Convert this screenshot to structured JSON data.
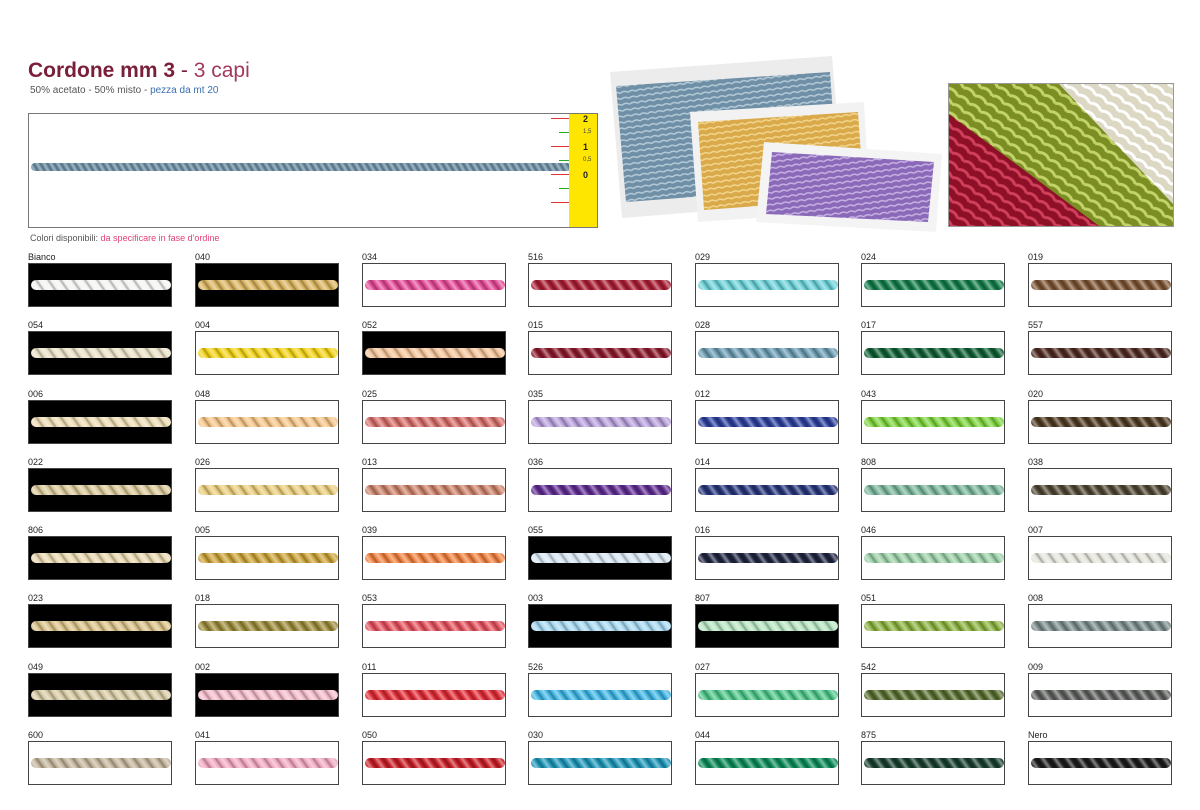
{
  "header": {
    "title_main": "Cordone mm 3",
    "title_sep": " - ",
    "title_sub": "3 capi",
    "spec": "50% acetato - 50% misto - ",
    "length": "pezza da mt 20",
    "available_label": "Colori disponibili: ",
    "available_note": "da specificare in fase d'ordine"
  },
  "ruler": {
    "cord_color": "#6a8ba0",
    "labels": [
      "2",
      "1,5",
      "1",
      "0,5",
      "0"
    ]
  },
  "swatches": [
    [
      {
        "code": "Bianco",
        "color": "#f4f4f2",
        "bg": "#000000"
      },
      {
        "code": "054",
        "color": "#e9e0c6",
        "bg": "#000000"
      },
      {
        "code": "006",
        "color": "#ecdcb4",
        "bg": "#000000"
      },
      {
        "code": "022",
        "color": "#d9c89a",
        "bg": "#000000"
      },
      {
        "code": "806",
        "color": "#e8d8b0",
        "bg": "#000000"
      },
      {
        "code": "023",
        "color": "#d9c28a",
        "bg": "#000000"
      },
      {
        "code": "049",
        "color": "#d6c9a4",
        "bg": "#000000"
      },
      {
        "code": "600",
        "color": "#c2b39a",
        "bg": "#ffffff"
      }
    ],
    [
      {
        "code": "040",
        "color": "#d8b360",
        "bg": "#000000"
      },
      {
        "code": "004",
        "color": "#f2d21a",
        "bg": "#ffffff"
      },
      {
        "code": "048",
        "color": "#f4c58a",
        "bg": "#ffffff"
      },
      {
        "code": "026",
        "color": "#e8cc7c",
        "bg": "#ffffff"
      },
      {
        "code": "005",
        "color": "#c9a23a",
        "bg": "#ffffff"
      },
      {
        "code": "018",
        "color": "#9a8a3a",
        "bg": "#ffffff"
      },
      {
        "code": "002",
        "color": "#f3bccb",
        "bg": "#000000"
      },
      {
        "code": "041",
        "color": "#f0a8c0",
        "bg": "#ffffff"
      }
    ],
    [
      {
        "code": "034",
        "color": "#e24a95",
        "bg": "#ffffff"
      },
      {
        "code": "052",
        "color": "#f2c39a",
        "bg": "#000000"
      },
      {
        "code": "025",
        "color": "#d46e6a",
        "bg": "#ffffff"
      },
      {
        "code": "013",
        "color": "#c9826a",
        "bg": "#ffffff"
      },
      {
        "code": "039",
        "color": "#ee8140",
        "bg": "#ffffff"
      },
      {
        "code": "053",
        "color": "#e2525e",
        "bg": "#ffffff"
      },
      {
        "code": "011",
        "color": "#de2b35",
        "bg": "#ffffff"
      },
      {
        "code": "050",
        "color": "#c61e26",
        "bg": "#ffffff"
      }
    ],
    [
      {
        "code": "516",
        "color": "#a81e34",
        "bg": "#ffffff"
      },
      {
        "code": "015",
        "color": "#8a1a2c",
        "bg": "#ffffff"
      },
      {
        "code": "035",
        "color": "#b7a0da",
        "bg": "#ffffff"
      },
      {
        "code": "036",
        "color": "#5e2b8e",
        "bg": "#ffffff"
      },
      {
        "code": "055",
        "color": "#d8e6f2",
        "bg": "#000000"
      },
      {
        "code": "003",
        "color": "#a8d8f0",
        "bg": "#000000"
      },
      {
        "code": "526",
        "color": "#3fb4e2",
        "bg": "#ffffff"
      },
      {
        "code": "030",
        "color": "#1f95b6",
        "bg": "#ffffff"
      }
    ],
    [
      {
        "code": "029",
        "color": "#6cd0d6",
        "bg": "#ffffff"
      },
      {
        "code": "028",
        "color": "#6a9ab0",
        "bg": "#ffffff"
      },
      {
        "code": "012",
        "color": "#2d3f9a",
        "bg": "#ffffff"
      },
      {
        "code": "014",
        "color": "#263578",
        "bg": "#ffffff"
      },
      {
        "code": "016",
        "color": "#1e2440",
        "bg": "#ffffff"
      },
      {
        "code": "807",
        "color": "#b8e4c2",
        "bg": "#000000"
      },
      {
        "code": "027",
        "color": "#4ec488",
        "bg": "#ffffff"
      },
      {
        "code": "044",
        "color": "#0e8a5a",
        "bg": "#ffffff"
      }
    ],
    [
      {
        "code": "024",
        "color": "#137a48",
        "bg": "#ffffff"
      },
      {
        "code": "017",
        "color": "#0f5e34",
        "bg": "#ffffff"
      },
      {
        "code": "043",
        "color": "#7dd23e",
        "bg": "#ffffff"
      },
      {
        "code": "808",
        "color": "#7ab49a",
        "bg": "#ffffff"
      },
      {
        "code": "046",
        "color": "#9ccfa8",
        "bg": "#ffffff"
      },
      {
        "code": "051",
        "color": "#8ab040",
        "bg": "#ffffff"
      },
      {
        "code": "542",
        "color": "#566c2e",
        "bg": "#ffffff"
      },
      {
        "code": "875",
        "color": "#183e2e",
        "bg": "#ffffff"
      }
    ],
    [
      {
        "code": "019",
        "color": "#7a5232",
        "bg": "#ffffff"
      },
      {
        "code": "557",
        "color": "#4e2a22",
        "bg": "#ffffff"
      },
      {
        "code": "020",
        "color": "#4e3a22",
        "bg": "#ffffff"
      },
      {
        "code": "038",
        "color": "#4e4432",
        "bg": "#ffffff"
      },
      {
        "code": "007",
        "color": "#e4e4dc",
        "bg": "#ffffff"
      },
      {
        "code": "008",
        "color": "#7a8a8a",
        "bg": "#ffffff"
      },
      {
        "code": "009",
        "color": "#5e605e",
        "bg": "#ffffff"
      },
      {
        "code": "Nero",
        "color": "#1c1c1c",
        "bg": "#ffffff"
      }
    ]
  ]
}
